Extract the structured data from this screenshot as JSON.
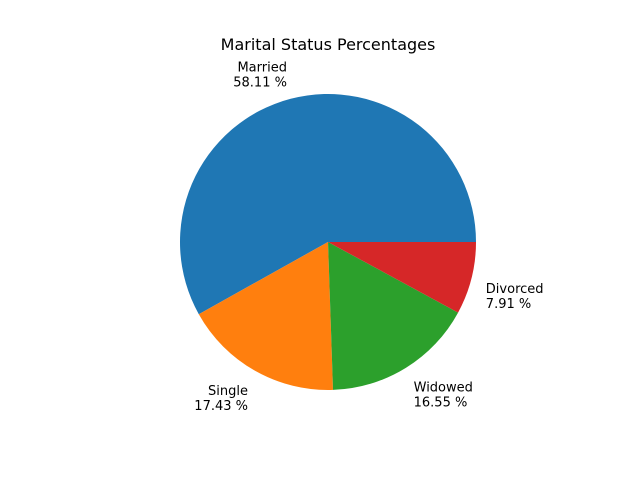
{
  "chart_data": {
    "type": "pie",
    "title": "Marital Status Percentages",
    "slices": [
      {
        "label": "Married",
        "value": 58.11,
        "pct_text": "58.11 %",
        "color": "#1f77b4"
      },
      {
        "label": "Single",
        "value": 17.43,
        "pct_text": "17.43 %",
        "color": "#ff7f0e"
      },
      {
        "label": "Widowed",
        "value": 16.55,
        "pct_text": "16.55 %",
        "color": "#2ca02c"
      },
      {
        "label": "Divorced",
        "value": 7.91,
        "pct_text": "7.91 %",
        "color": "#d62728"
      }
    ],
    "start_angle_deg": 0,
    "direction": "counterclockwise",
    "legend": "none"
  }
}
